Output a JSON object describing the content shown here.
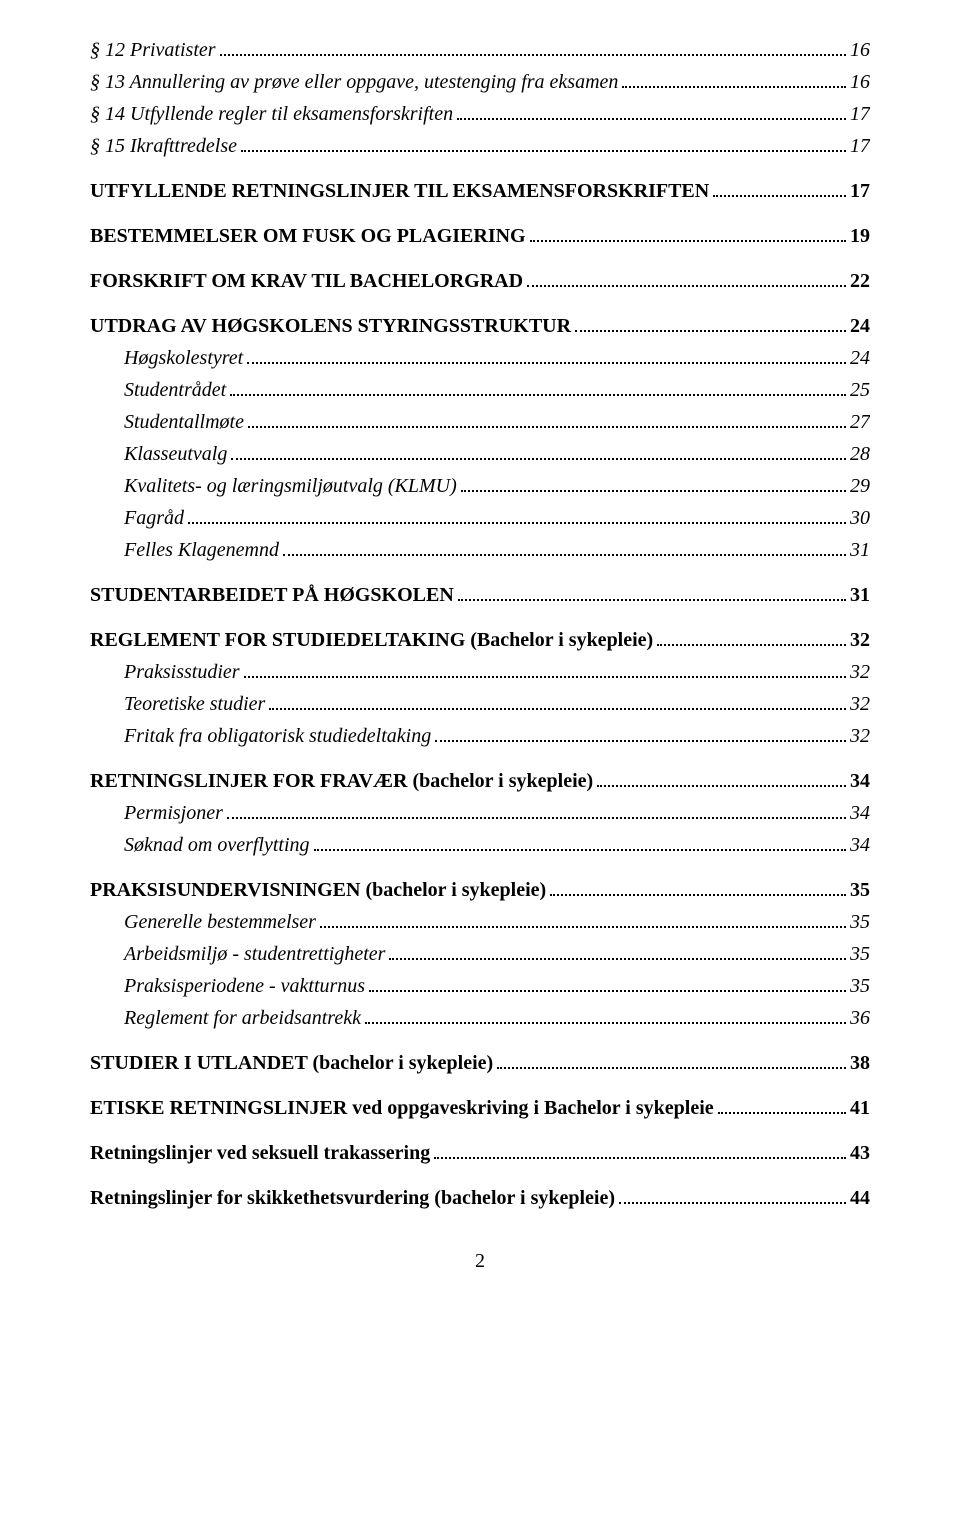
{
  "toc": [
    {
      "label": "§ 12    Privatister",
      "page": "16",
      "style": "italic",
      "indent": 0,
      "gap": false
    },
    {
      "label": "§ 13    Annullering av prøve eller oppgave, utestenging fra eksamen",
      "page": "16",
      "style": "italic",
      "indent": 0,
      "gap": false
    },
    {
      "label": "§ 14    Utfyllende regler til eksamensforskriften",
      "page": "17",
      "style": "italic",
      "indent": 0,
      "gap": false
    },
    {
      "label": "§ 15    Ikrafttredelse",
      "page": "17",
      "style": "italic",
      "indent": 0,
      "gap": false
    },
    {
      "label": "UTFYLLENDE RETNINGSLINJER TIL EKSAMENSFORSKRIFTEN",
      "page": "17",
      "style": "bold",
      "indent": 0,
      "gap": true
    },
    {
      "label": "BESTEMMELSER OM FUSK OG PLAGIERING",
      "page": "19",
      "style": "bold",
      "indent": 0,
      "gap": true
    },
    {
      "label": "FORSKRIFT OM KRAV TIL BACHELORGRAD",
      "page": "22",
      "style": "bold",
      "indent": 0,
      "gap": true
    },
    {
      "label": "UTDRAG AV HØGSKOLENS STYRINGSSTRUKTUR",
      "page": "24",
      "style": "bold",
      "indent": 0,
      "gap": true
    },
    {
      "label": "Høgskolestyret",
      "page": "24",
      "style": "italic",
      "indent": 1,
      "gap": false
    },
    {
      "label": "Studentrådet",
      "page": "25",
      "style": "italic",
      "indent": 1,
      "gap": false
    },
    {
      "label": "Studentallmøte",
      "page": "27",
      "style": "italic",
      "indent": 1,
      "gap": false
    },
    {
      "label": "Klasseutvalg",
      "page": "28",
      "style": "italic",
      "indent": 1,
      "gap": false
    },
    {
      "label": "Kvalitets- og læringsmiljøutvalg (KLMU)",
      "page": "29",
      "style": "italic",
      "indent": 1,
      "gap": false
    },
    {
      "label": "Fagråd",
      "page": "30",
      "style": "italic",
      "indent": 1,
      "gap": false
    },
    {
      "label": "Felles Klagenemnd",
      "page": "31",
      "style": "italic",
      "indent": 1,
      "gap": false
    },
    {
      "label": "STUDENTARBEIDET PÅ HØGSKOLEN",
      "page": "31",
      "style": "bold",
      "indent": 0,
      "gap": true
    },
    {
      "label": "REGLEMENT FOR STUDIEDELTAKING (Bachelor i sykepleie)",
      "page": "32",
      "style": "bold",
      "indent": 0,
      "gap": true
    },
    {
      "label": "Praksisstudier",
      "page": "32",
      "style": "italic",
      "indent": 1,
      "gap": false
    },
    {
      "label": "Teoretiske studier",
      "page": "32",
      "style": "italic",
      "indent": 1,
      "gap": false
    },
    {
      "label": "Fritak fra obligatorisk studiedeltaking",
      "page": "32",
      "style": "italic",
      "indent": 1,
      "gap": false
    },
    {
      "label": "RETNINGSLINJER FOR FRAVÆR (bachelor i sykepleie)",
      "page": "34",
      "style": "bold",
      "indent": 0,
      "gap": true
    },
    {
      "label": "Permisjoner",
      "page": "34",
      "style": "italic",
      "indent": 1,
      "gap": false
    },
    {
      "label": "Søknad om overflytting",
      "page": "34",
      "style": "italic",
      "indent": 1,
      "gap": false
    },
    {
      "label": "PRAKSISUNDERVISNINGEN (bachelor i sykepleie)",
      "page": "35",
      "style": "bold",
      "indent": 0,
      "gap": true
    },
    {
      "label": "Generelle bestemmelser",
      "page": "35",
      "style": "italic",
      "indent": 1,
      "gap": false
    },
    {
      "label": "Arbeidsmiljø - studentrettigheter",
      "page": "35",
      "style": "italic",
      "indent": 1,
      "gap": false
    },
    {
      "label": "Praksisperiodene - vaktturnus",
      "page": "35",
      "style": "italic",
      "indent": 1,
      "gap": false
    },
    {
      "label": "Reglement for arbeidsantrekk",
      "page": "36",
      "style": "italic",
      "indent": 1,
      "gap": false
    },
    {
      "label": "STUDIER I UTLANDET (bachelor i sykepleie)",
      "page": "38",
      "style": "bold",
      "indent": 0,
      "gap": true
    },
    {
      "label": "ETISKE RETNINGSLINJER ved oppgaveskriving i Bachelor i sykepleie",
      "page": "41",
      "style": "bold",
      "indent": 0,
      "gap": true
    },
    {
      "label": "Retningslinjer ved seksuell trakassering",
      "page": "43",
      "style": "bold",
      "indent": 0,
      "gap": true
    },
    {
      "label": "Retningslinjer for skikkethetsvurdering (bachelor i sykepleie)",
      "page": "44",
      "style": "bold",
      "indent": 0,
      "gap": true
    }
  ],
  "page_number": "2"
}
